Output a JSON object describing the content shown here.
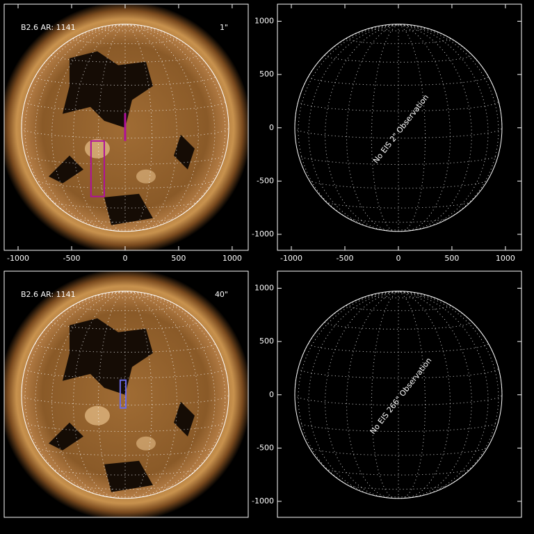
{
  "chart_data": [
    {
      "type": "image",
      "label": "B2.6 AR: 1141",
      "marker_label": "1\"",
      "marker_color": "#b0109a",
      "xlim": [
        -1130,
        1150
      ],
      "ylim": [
        -1150,
        1160
      ],
      "xticks": [
        -1000,
        -500,
        0,
        500,
        1000
      ],
      "boxes": [
        {
          "x": [
            -319,
            -195
          ],
          "y": [
            -645,
            -124
          ]
        }
      ],
      "lines": [
        {
          "x": 0,
          "y": [
            -124,
            137
          ]
        }
      ]
    },
    {
      "type": "disk",
      "annotation": "No EIS 2\" Observation",
      "xlim": [
        -1130,
        1150
      ],
      "ylim": [
        -1150,
        1160
      ],
      "xticks": [
        -1000,
        -500,
        0,
        500,
        1000
      ],
      "yticks": [
        -1000,
        -500,
        0,
        500,
        1000
      ]
    },
    {
      "type": "image",
      "label": "B2.6 AR: 1141",
      "marker_label": "40\"",
      "marker_color": "#6a6ae8",
      "xlim": [
        -1130,
        1150
      ],
      "ylim": [
        -1150,
        1160
      ],
      "boxes": [
        {
          "x": [
            -46,
            7
          ],
          "y": [
            -124,
            137
          ]
        }
      ]
    },
    {
      "type": "disk",
      "annotation": "No EIS 266\" Observation",
      "xlim": [
        -1130,
        1150
      ],
      "ylim": [
        -1150,
        1160
      ],
      "yticks": [
        -1000,
        -500,
        0,
        500,
        1000
      ]
    }
  ]
}
